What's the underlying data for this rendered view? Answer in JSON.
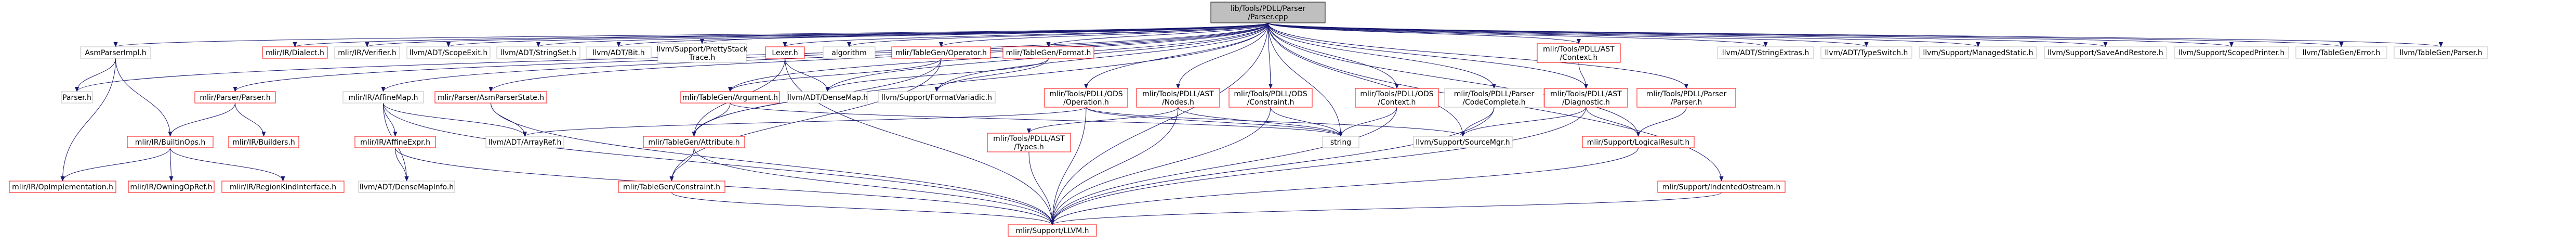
{
  "graph": {
    "colors": {
      "edge": "#191970",
      "border_default": "#bfbfbf",
      "border_linked": "#ff0000",
      "root_fill": "#bfbfbf",
      "root_border": "#000000",
      "fill": "#ffffff",
      "text": "#000000"
    },
    "nodes": [
      {
        "id": "root",
        "lines": [
          "lib/Tools/PDLL/Parser",
          "/Parser.cpp"
        ],
        "kind": "root"
      },
      {
        "id": "asmparserimpl",
        "lines": [
          "AsmParserImpl.h"
        ],
        "kind": "plain"
      },
      {
        "id": "mlirdialect",
        "lines": [
          "mlir/IR/Dialect.h"
        ],
        "kind": "linked"
      },
      {
        "id": "mlirverifier",
        "lines": [
          "mlir/IR/Verifier.h"
        ],
        "kind": "plain"
      },
      {
        "id": "scopedexit",
        "lines": [
          "llvm/ADT/ScopeExit.h"
        ],
        "kind": "plain"
      },
      {
        "id": "stringset",
        "lines": [
          "llvm/ADT/StringSet.h"
        ],
        "kind": "plain"
      },
      {
        "id": "bit",
        "lines": [
          "llvm/ADT/Bit.h"
        ],
        "kind": "plain"
      },
      {
        "id": "prettystack",
        "lines": [
          "llvm/Support/PrettyStack",
          "Trace.h"
        ],
        "kind": "plain"
      },
      {
        "id": "lexer",
        "lines": [
          "Lexer.h"
        ],
        "kind": "linked"
      },
      {
        "id": "algorithm",
        "lines": [
          "algorithm"
        ],
        "kind": "plain"
      },
      {
        "id": "tgoperator",
        "lines": [
          "mlir/TableGen/Operator.h"
        ],
        "kind": "linked"
      },
      {
        "id": "tgformat",
        "lines": [
          "mlir/TableGen/Format.h"
        ],
        "kind": "linked"
      },
      {
        "id": "astcontext",
        "lines": [
          "mlir/Tools/PDLL/AST",
          "/Context.h"
        ],
        "kind": "linked"
      },
      {
        "id": "stringextras",
        "lines": [
          "llvm/ADT/StringExtras.h"
        ],
        "kind": "plain"
      },
      {
        "id": "typeswitch",
        "lines": [
          "llvm/ADT/TypeSwitch.h"
        ],
        "kind": "plain"
      },
      {
        "id": "managedstatic",
        "lines": [
          "llvm/Support/ManagedStatic.h"
        ],
        "kind": "plain"
      },
      {
        "id": "saverestore",
        "lines": [
          "llvm/Support/SaveAndRestore.h"
        ],
        "kind": "plain"
      },
      {
        "id": "scopedprinter",
        "lines": [
          "llvm/Support/ScopedPrinter.h"
        ],
        "kind": "plain"
      },
      {
        "id": "tgerror",
        "lines": [
          "llvm/TableGen/Error.h"
        ],
        "kind": "plain"
      },
      {
        "id": "tgparser",
        "lines": [
          "llvm/TableGen/Parser.h"
        ],
        "kind": "plain"
      },
      {
        "id": "parserh",
        "lines": [
          "Parser.h"
        ],
        "kind": "plain"
      },
      {
        "id": "mlirparser",
        "lines": [
          "mlir/Parser/Parser.h"
        ],
        "kind": "linked"
      },
      {
        "id": "affinemap",
        "lines": [
          "mlir/IR/AffineMap.h"
        ],
        "kind": "plain"
      },
      {
        "id": "asmparserstate",
        "lines": [
          "mlir/Parser/AsmParserState.h"
        ],
        "kind": "linked"
      },
      {
        "id": "tgargument",
        "lines": [
          "mlir/TableGen/Argument.h"
        ],
        "kind": "linked"
      },
      {
        "id": "densemap",
        "lines": [
          "llvm/ADT/DenseMap.h"
        ],
        "kind": "plain"
      },
      {
        "id": "formatvariadic",
        "lines": [
          "llvm/Support/FormatVariadic.h"
        ],
        "kind": "plain"
      },
      {
        "id": "odsoperation",
        "lines": [
          "mlir/Tools/PDLL/ODS",
          "/Operation.h"
        ],
        "kind": "linked"
      },
      {
        "id": "astnodes",
        "lines": [
          "mlir/Tools/PDLL/AST",
          "/Nodes.h"
        ],
        "kind": "linked"
      },
      {
        "id": "odsconstraint",
        "lines": [
          "mlir/Tools/PDLL/ODS",
          "/Constraint.h"
        ],
        "kind": "linked"
      },
      {
        "id": "odscontext",
        "lines": [
          "mlir/Tools/PDLL/ODS",
          "/Context.h"
        ],
        "kind": "linked"
      },
      {
        "id": "codecomplete",
        "lines": [
          "mlir/Tools/PDLL/Parser",
          "/CodeComplete.h"
        ],
        "kind": "plain"
      },
      {
        "id": "astdiagnostic",
        "lines": [
          "mlir/Tools/PDLL/AST",
          "/Diagnostic.h"
        ],
        "kind": "linked"
      },
      {
        "id": "pdllparser",
        "lines": [
          "mlir/Tools/PDLL/Parser",
          "/Parser.h"
        ],
        "kind": "linked"
      },
      {
        "id": "builtinops",
        "lines": [
          "mlir/IR/BuiltinOps.h"
        ],
        "kind": "linked"
      },
      {
        "id": "builders",
        "lines": [
          "mlir/IR/Builders.h"
        ],
        "kind": "linked"
      },
      {
        "id": "affineexpr",
        "lines": [
          "mlir/IR/AffineExpr.h"
        ],
        "kind": "linked"
      },
      {
        "id": "arrayref",
        "lines": [
          "llvm/ADT/ArrayRef.h"
        ],
        "kind": "plain"
      },
      {
        "id": "tgattribute",
        "lines": [
          "mlir/TableGen/Attribute.h"
        ],
        "kind": "linked"
      },
      {
        "id": "asttypes",
        "lines": [
          "mlir/Tools/PDLL/AST",
          "/Types.h"
        ],
        "kind": "linked"
      },
      {
        "id": "string",
        "lines": [
          "string"
        ],
        "kind": "plain"
      },
      {
        "id": "sourcemgr",
        "lines": [
          "llvm/Support/SourceMgr.h"
        ],
        "kind": "plain"
      },
      {
        "id": "logicalresult",
        "lines": [
          "mlir/Support/LogicalResult.h"
        ],
        "kind": "linked"
      },
      {
        "id": "opimplementation",
        "lines": [
          "mlir/IR/OpImplementation.h"
        ],
        "kind": "linked"
      },
      {
        "id": "owningopref",
        "lines": [
          "mlir/IR/OwningOpRef.h"
        ],
        "kind": "linked"
      },
      {
        "id": "regionkind",
        "lines": [
          "mlir/IR/RegionKindInterface.h"
        ],
        "kind": "linked"
      },
      {
        "id": "densemapinfo",
        "lines": [
          "llvm/ADT/DenseMapInfo.h"
        ],
        "kind": "plain"
      },
      {
        "id": "tgconstraint",
        "lines": [
          "mlir/TableGen/Constraint.h"
        ],
        "kind": "linked"
      },
      {
        "id": "indentedostream",
        "lines": [
          "mlir/Support/IndentedOstream.h"
        ],
        "kind": "linked"
      },
      {
        "id": "llvmh",
        "lines": [
          "mlir/Support/LLVM.h"
        ],
        "kind": "linked"
      }
    ],
    "edges": [
      [
        "root",
        "asmparserimpl"
      ],
      [
        "root",
        "mlirdialect"
      ],
      [
        "root",
        "mlirverifier"
      ],
      [
        "root",
        "scopedexit"
      ],
      [
        "root",
        "stringset"
      ],
      [
        "root",
        "bit"
      ],
      [
        "root",
        "prettystack"
      ],
      [
        "root",
        "lexer"
      ],
      [
        "root",
        "algorithm"
      ],
      [
        "root",
        "tgoperator"
      ],
      [
        "root",
        "tgformat"
      ],
      [
        "root",
        "astcontext"
      ],
      [
        "root",
        "stringextras"
      ],
      [
        "root",
        "typeswitch"
      ],
      [
        "root",
        "managedstatic"
      ],
      [
        "root",
        "saverestore"
      ],
      [
        "root",
        "scopedprinter"
      ],
      [
        "root",
        "tgerror"
      ],
      [
        "root",
        "tgparser"
      ],
      [
        "root",
        "parserh"
      ],
      [
        "root",
        "mlirparser"
      ],
      [
        "root",
        "affinemap"
      ],
      [
        "root",
        "asmparserstate"
      ],
      [
        "root",
        "tgargument"
      ],
      [
        "root",
        "odsoperation"
      ],
      [
        "root",
        "astnodes"
      ],
      [
        "root",
        "odsconstraint"
      ],
      [
        "root",
        "odscontext"
      ],
      [
        "root",
        "codecomplete"
      ],
      [
        "root",
        "astdiagnostic"
      ],
      [
        "root",
        "pdllparser"
      ],
      [
        "root",
        "logicalresult"
      ],
      [
        "root",
        "indentedostream"
      ],
      [
        "root",
        "llvmh"
      ],
      [
        "root",
        "sourcemgr"
      ],
      [
        "root",
        "string"
      ],
      [
        "root",
        "tgattribute"
      ],
      [
        "root",
        "densemap"
      ],
      [
        "root",
        "formatvariadic"
      ],
      [
        "asmparserimpl",
        "parserh"
      ],
      [
        "asmparserimpl",
        "builtinops"
      ],
      [
        "asmparserimpl",
        "opimplementation"
      ],
      [
        "lexer",
        "llvmh"
      ],
      [
        "lexer",
        "tgattribute"
      ],
      [
        "lexer",
        "densemap"
      ],
      [
        "tgoperator",
        "tgargument"
      ],
      [
        "tgoperator",
        "tgattribute"
      ],
      [
        "tgoperator",
        "tgconstraint"
      ],
      [
        "tgformat",
        "formatvariadic"
      ],
      [
        "tgformat",
        "densemap"
      ],
      [
        "astcontext",
        "astdiagnostic"
      ],
      [
        "mlirparser",
        "builtinops"
      ],
      [
        "mlirparser",
        "builders"
      ],
      [
        "affinemap",
        "affineexpr"
      ],
      [
        "affinemap",
        "arrayref"
      ],
      [
        "affinemap",
        "densemapinfo"
      ],
      [
        "affinemap",
        "llvmh"
      ],
      [
        "asmparserstate",
        "arrayref"
      ],
      [
        "asmparserstate",
        "llvmh"
      ],
      [
        "tgargument",
        "tgattribute"
      ],
      [
        "tgargument",
        "string"
      ],
      [
        "odsoperation",
        "arrayref"
      ],
      [
        "odsoperation",
        "string"
      ],
      [
        "odsoperation",
        "sourcemgr"
      ],
      [
        "odsoperation",
        "llvmh"
      ],
      [
        "astnodes",
        "asttypes"
      ],
      [
        "astnodes",
        "string"
      ],
      [
        "astnodes",
        "llvmh"
      ],
      [
        "odsconstraint",
        "string"
      ],
      [
        "odsconstraint",
        "llvmh"
      ],
      [
        "odscontext",
        "string"
      ],
      [
        "odscontext",
        "llvmh"
      ],
      [
        "codecomplete",
        "sourcemgr"
      ],
      [
        "codecomplete",
        "llvmh"
      ],
      [
        "astdiagnostic",
        "sourcemgr"
      ],
      [
        "astdiagnostic",
        "logicalresult"
      ],
      [
        "astdiagnostic",
        "llvmh"
      ],
      [
        "pdllparser",
        "logicalresult"
      ],
      [
        "builtinops",
        "opimplementation"
      ],
      [
        "builtinops",
        "owningopref"
      ],
      [
        "builtinops",
        "regionkind"
      ],
      [
        "affineexpr",
        "densemapinfo"
      ],
      [
        "affineexpr",
        "llvmh"
      ],
      [
        "tgattribute",
        "tgconstraint"
      ],
      [
        "tgattribute",
        "llvmh"
      ],
      [
        "asttypes",
        "llvmh"
      ],
      [
        "logicalresult",
        "llvmh"
      ],
      [
        "tgconstraint",
        "llvmh"
      ],
      [
        "indentedostream",
        "llvmh"
      ]
    ]
  }
}
